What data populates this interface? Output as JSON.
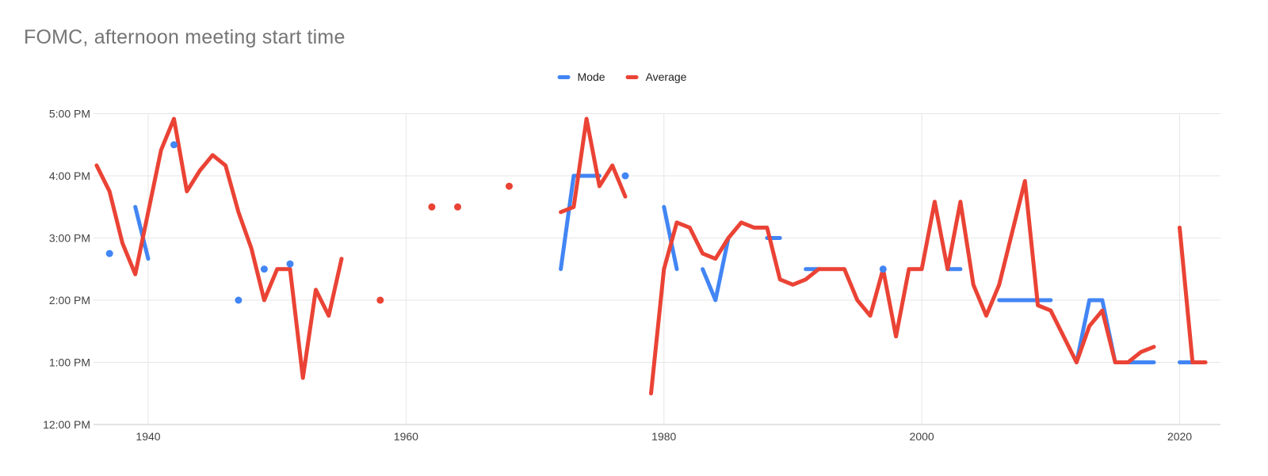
{
  "title": "FOMC, afternoon meeting start time",
  "legend": {
    "items": [
      {
        "label": "Mode",
        "color": "#4285F4"
      },
      {
        "label": "Average",
        "color": "#EA4335"
      }
    ]
  },
  "colors": {
    "background": "#ffffff",
    "title_text": "#757575",
    "axis_text": "#424242",
    "gridline": "#e6e6e6",
    "axis_line": "#c9c9c9",
    "mode_blue": "#4285F4",
    "average_red": "#EA4335"
  },
  "chart_data": {
    "type": "line",
    "title": "FOMC, afternoon meeting start time",
    "legend_position": "top-center",
    "grid": true,
    "point_style": "isolated years render as round dots; consecutive years connect with straight segments",
    "x_axis": {
      "tick_years": [
        1940,
        1960,
        1980,
        2000,
        2020
      ],
      "tick_labels": [
        "1940",
        "1960",
        "1980",
        "2000",
        "2020"
      ],
      "range_years": [
        1935.7,
        2023.3
      ]
    },
    "y_axis": {
      "tick_labels": [
        "12:00 PM",
        "1:00 PM",
        "2:00 PM",
        "3:00 PM",
        "4:00 PM",
        "5:00 PM"
      ],
      "min": "12:00 PM",
      "max": "5:00 PM"
    },
    "series": [
      {
        "name": "Mode",
        "color": "#4285F4",
        "points": [
          [
            1937,
            "2:45 PM"
          ],
          [
            1939,
            "3:30 PM"
          ],
          [
            1940,
            "2:40 PM"
          ],
          [
            1942,
            "4:30 PM"
          ],
          [
            1947,
            "2:00 PM"
          ],
          [
            1949,
            "2:30 PM"
          ],
          [
            1951,
            "2:35 PM"
          ],
          [
            1972,
            "2:30 PM"
          ],
          [
            1973,
            "4:00 PM"
          ],
          [
            1974,
            "4:00 PM"
          ],
          [
            1975,
            "4:00 PM"
          ],
          [
            1977,
            "4:00 PM"
          ],
          [
            1980,
            "3:30 PM"
          ],
          [
            1981,
            "2:30 PM"
          ],
          [
            1983,
            "2:30 PM"
          ],
          [
            1984,
            "2:00 PM"
          ],
          [
            1985,
            "3:00 PM"
          ],
          [
            1988,
            "3:00 PM"
          ],
          [
            1989,
            "3:00 PM"
          ],
          [
            1991,
            "2:30 PM"
          ],
          [
            1992,
            "2:30 PM"
          ],
          [
            1997,
            "2:30 PM"
          ],
          [
            2002,
            "2:30 PM"
          ],
          [
            2003,
            "2:30 PM"
          ],
          [
            2006,
            "2:00 PM"
          ],
          [
            2007,
            "2:00 PM"
          ],
          [
            2008,
            "2:00 PM"
          ],
          [
            2009,
            "2:00 PM"
          ],
          [
            2010,
            "2:00 PM"
          ],
          [
            2012,
            "1:00 PM"
          ],
          [
            2013,
            "2:00 PM"
          ],
          [
            2014,
            "2:00 PM"
          ],
          [
            2015,
            "1:00 PM"
          ],
          [
            2016,
            "1:00 PM"
          ],
          [
            2017,
            "1:00 PM"
          ],
          [
            2018,
            "1:00 PM"
          ],
          [
            2020,
            "1:00 PM"
          ],
          [
            2021,
            "1:00 PM"
          ]
        ]
      },
      {
        "name": "Average",
        "color": "#EA4335",
        "points": [
          [
            1936,
            "4:10 PM"
          ],
          [
            1937,
            "3:45 PM"
          ],
          [
            1938,
            "2:55 PM"
          ],
          [
            1939,
            "2:25 PM"
          ],
          [
            1940,
            "3:25 PM"
          ],
          [
            1941,
            "4:25 PM"
          ],
          [
            1942,
            "4:55 PM"
          ],
          [
            1943,
            "3:45 PM"
          ],
          [
            1944,
            "4:05 PM"
          ],
          [
            1945,
            "4:20 PM"
          ],
          [
            1946,
            "4:10 PM"
          ],
          [
            1947,
            "3:25 PM"
          ],
          [
            1948,
            "2:50 PM"
          ],
          [
            1949,
            "2:00 PM"
          ],
          [
            1950,
            "2:30 PM"
          ],
          [
            1951,
            "2:30 PM"
          ],
          [
            1952,
            "12:45 PM"
          ],
          [
            1953,
            "2:10 PM"
          ],
          [
            1954,
            "1:45 PM"
          ],
          [
            1955,
            "2:40 PM"
          ],
          [
            1958,
            "2:00 PM"
          ],
          [
            1962,
            "3:30 PM"
          ],
          [
            1964,
            "3:30 PM"
          ],
          [
            1968,
            "3:50 PM"
          ],
          [
            1972,
            "3:25 PM"
          ],
          [
            1973,
            "3:30 PM"
          ],
          [
            1974,
            "4:55 PM"
          ],
          [
            1975,
            "3:50 PM"
          ],
          [
            1976,
            "4:10 PM"
          ],
          [
            1977,
            "3:40 PM"
          ],
          [
            1979,
            "12:30 PM"
          ],
          [
            1980,
            "2:30 PM"
          ],
          [
            1981,
            "3:15 PM"
          ],
          [
            1982,
            "3:10 PM"
          ],
          [
            1983,
            "2:45 PM"
          ],
          [
            1984,
            "2:40 PM"
          ],
          [
            1985,
            "3:00 PM"
          ],
          [
            1986,
            "3:15 PM"
          ],
          [
            1987,
            "3:10 PM"
          ],
          [
            1988,
            "3:10 PM"
          ],
          [
            1989,
            "2:20 PM"
          ],
          [
            1990,
            "2:15 PM"
          ],
          [
            1991,
            "2:20 PM"
          ],
          [
            1992,
            "2:30 PM"
          ],
          [
            1993,
            "2:30 PM"
          ],
          [
            1994,
            "2:30 PM"
          ],
          [
            1995,
            "2:00 PM"
          ],
          [
            1996,
            "1:45 PM"
          ],
          [
            1997,
            "2:30 PM"
          ],
          [
            1998,
            "1:25 PM"
          ],
          [
            1999,
            "2:30 PM"
          ],
          [
            2000,
            "2:30 PM"
          ],
          [
            2001,
            "3:35 PM"
          ],
          [
            2002,
            "2:30 PM"
          ],
          [
            2003,
            "3:35 PM"
          ],
          [
            2004,
            "2:15 PM"
          ],
          [
            2005,
            "1:45 PM"
          ],
          [
            2006,
            "2:15 PM"
          ],
          [
            2007,
            "3:05 PM"
          ],
          [
            2008,
            "3:55 PM"
          ],
          [
            2009,
            "1:55 PM"
          ],
          [
            2010,
            "1:50 PM"
          ],
          [
            2011,
            "1:25 PM"
          ],
          [
            2012,
            "1:00 PM"
          ],
          [
            2013,
            "1:35 PM"
          ],
          [
            2014,
            "1:50 PM"
          ],
          [
            2015,
            "1:00 PM"
          ],
          [
            2016,
            "1:00 PM"
          ],
          [
            2017,
            "1:10 PM"
          ],
          [
            2018,
            "1:15 PM"
          ],
          [
            2020,
            "3:10 PM"
          ],
          [
            2021,
            "1:00 PM"
          ],
          [
            2022,
            "1:00 PM"
          ]
        ]
      }
    ]
  }
}
